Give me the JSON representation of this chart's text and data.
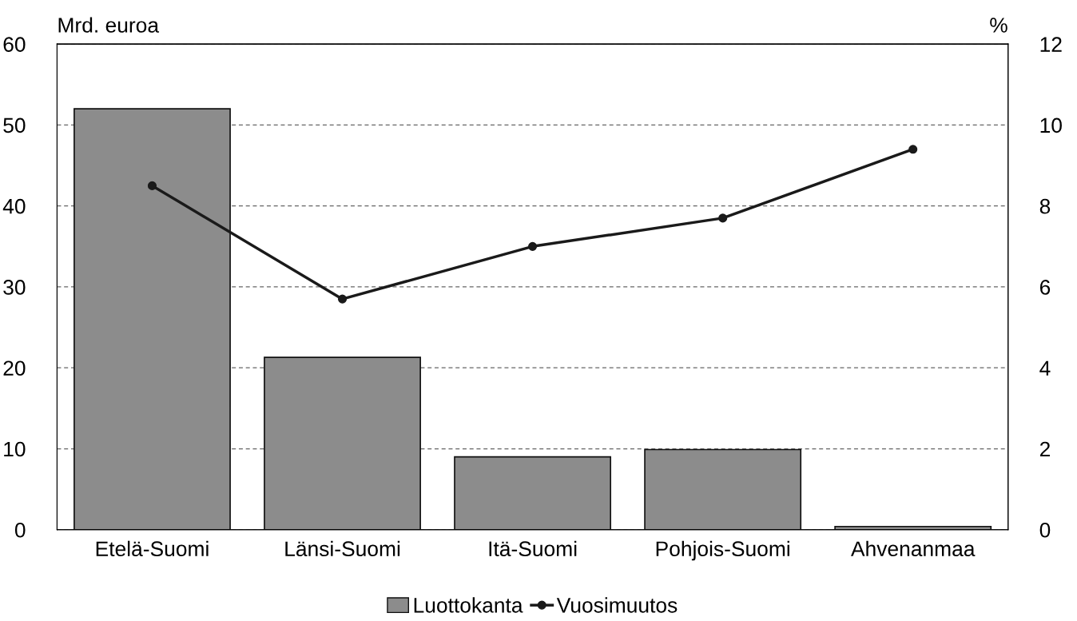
{
  "chart_data": {
    "type": "bar",
    "ylabel": "Mrd. euroa",
    "y2label": "%",
    "categories": [
      "Etelä-Suomi",
      "Länsi-Suomi",
      "Itä-Suomi",
      "Pohjois-Suomi",
      "Ahvenanmaa"
    ],
    "series": [
      {
        "name": "Luottokanta",
        "color": "#8c8c8c",
        "values": [
          52,
          21.3,
          9.0,
          9.9,
          0.4
        ]
      },
      {
        "name": "Vuosimuutos",
        "type": "line",
        "axis": "y2",
        "color": "#1a1a1a",
        "values": [
          8.5,
          5.7,
          7.0,
          7.7,
          9.4
        ]
      }
    ],
    "ylim": [
      0,
      60
    ],
    "yticks": [
      0,
      10,
      20,
      30,
      40,
      50,
      60
    ],
    "y2lim": [
      0,
      12
    ],
    "y2ticks": [
      0,
      2,
      4,
      6,
      8,
      10,
      12
    ],
    "grid": "y",
    "legend": "bottom",
    "marker": "circle",
    "line_style": "solid"
  }
}
